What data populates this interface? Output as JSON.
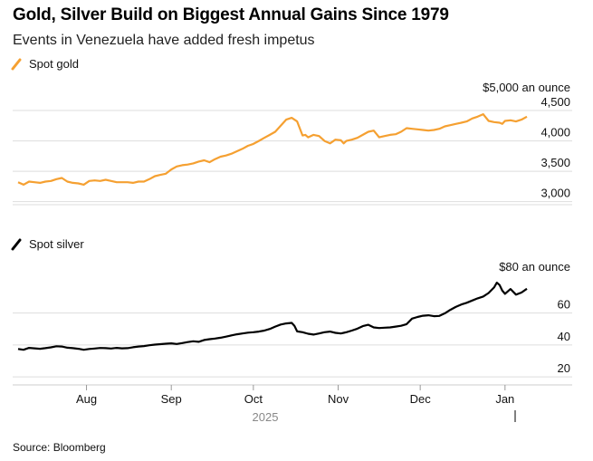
{
  "title": "Gold, Silver Build on Biggest Annual Gains Since 1979",
  "subtitle": "Events in Venezuela have added fresh impetus",
  "source": "Source: Bloomberg",
  "colors": {
    "gold": "#f5a031",
    "silver": "#000000",
    "grid": "#dddddd",
    "axis": "#cccccc"
  },
  "x_axis": {
    "labels": [
      "Aug",
      "Sep",
      "Oct",
      "Nov",
      "Dec",
      "Jan"
    ],
    "year_label": "2025"
  },
  "chart_data": [
    {
      "type": "line",
      "title": "Spot gold",
      "legend": "Spot gold",
      "unit_label": "$5,000 an ounce",
      "ylim": [
        2950,
        4650
      ],
      "yticks": [
        3000,
        3500,
        4000,
        4500
      ],
      "ytick_labels": [
        "3,000",
        "3,500",
        "4,000",
        "4,500"
      ],
      "x_range": [
        0,
        186
      ],
      "x_ticks": {
        "Aug": 25,
        "Sep": 56,
        "Oct": 86,
        "Nov": 117,
        "Dec": 147,
        "Jan": 178
      },
      "x": [
        0,
        2,
        4,
        6,
        8,
        10,
        12,
        14,
        16,
        18,
        20,
        22,
        24,
        26,
        28,
        30,
        32,
        34,
        36,
        38,
        40,
        42,
        44,
        46,
        48,
        50,
        52,
        54,
        56,
        58,
        60,
        62,
        64,
        66,
        68,
        70,
        72,
        74,
        76,
        78,
        80,
        82,
        84,
        86,
        88,
        90,
        92,
        94,
        96,
        98,
        100,
        102,
        104,
        105,
        106,
        108,
        110,
        112,
        114,
        116,
        118,
        119,
        120,
        122,
        124,
        126,
        128,
        130,
        132,
        134,
        136,
        138,
        140,
        142,
        144,
        146,
        148,
        150,
        152,
        154,
        156,
        158,
        160,
        162,
        164,
        166,
        168,
        170,
        172,
        174,
        176,
        177,
        178,
        180,
        182,
        184,
        186
      ],
      "values": [
        3320,
        3280,
        3330,
        3320,
        3310,
        3330,
        3340,
        3370,
        3390,
        3330,
        3310,
        3300,
        3280,
        3340,
        3350,
        3340,
        3360,
        3340,
        3320,
        3320,
        3320,
        3310,
        3330,
        3330,
        3370,
        3420,
        3440,
        3460,
        3530,
        3580,
        3600,
        3610,
        3630,
        3660,
        3680,
        3650,
        3700,
        3740,
        3760,
        3790,
        3830,
        3870,
        3920,
        3950,
        4000,
        4050,
        4100,
        4150,
        4250,
        4350,
        4380,
        4320,
        4090,
        4100,
        4060,
        4100,
        4080,
        4000,
        3960,
        4020,
        4010,
        3960,
        4000,
        4020,
        4050,
        4100,
        4150,
        4170,
        4060,
        4080,
        4100,
        4110,
        4150,
        4210,
        4200,
        4190,
        4180,
        4170,
        4180,
        4200,
        4240,
        4260,
        4280,
        4300,
        4320,
        4370,
        4400,
        4440,
        4330,
        4310,
        4300,
        4280,
        4330,
        4340,
        4320,
        4350,
        4400
      ]
    },
    {
      "type": "line",
      "title": "Spot silver",
      "legend": "Spot silver",
      "unit_label": "$80 an ounce",
      "ylim": [
        15,
        83
      ],
      "yticks": [
        20,
        40,
        60
      ],
      "ytick_labels": [
        "20",
        "40",
        "60"
      ],
      "x_range": [
        0,
        186
      ],
      "x_ticks": {
        "Aug": 25,
        "Sep": 56,
        "Oct": 86,
        "Nov": 117,
        "Dec": 147,
        "Jan": 178
      },
      "x": [
        0,
        2,
        4,
        6,
        8,
        10,
        12,
        14,
        16,
        18,
        20,
        22,
        24,
        26,
        28,
        30,
        32,
        34,
        36,
        38,
        40,
        42,
        44,
        46,
        48,
        50,
        52,
        54,
        56,
        58,
        60,
        62,
        64,
        66,
        68,
        70,
        72,
        74,
        76,
        78,
        80,
        82,
        84,
        86,
        88,
        90,
        92,
        94,
        96,
        98,
        100,
        101,
        102,
        104,
        106,
        108,
        110,
        112,
        114,
        116,
        118,
        120,
        122,
        124,
        126,
        128,
        130,
        132,
        134,
        136,
        138,
        140,
        142,
        144,
        146,
        148,
        150,
        152,
        154,
        156,
        158,
        160,
        162,
        164,
        166,
        168,
        170,
        172,
        174,
        175,
        176,
        177,
        178,
        180,
        182,
        184,
        186
      ],
      "values": [
        37.5,
        37.0,
        38.2,
        37.9,
        37.6,
        38.0,
        38.5,
        39.2,
        39.0,
        38.3,
        38.0,
        37.6,
        37.0,
        37.5,
        37.8,
        38.1,
        38.0,
        37.8,
        38.2,
        37.9,
        38.0,
        38.6,
        39.0,
        39.3,
        39.8,
        40.2,
        40.5,
        40.8,
        41.0,
        40.6,
        41.2,
        41.8,
        42.3,
        42.0,
        43.1,
        43.6,
        44.0,
        44.5,
        45.2,
        46.0,
        46.7,
        47.2,
        47.7,
        48.0,
        48.4,
        49.0,
        50.0,
        51.5,
        52.8,
        53.5,
        53.8,
        52.0,
        48.5,
        48.0,
        47.0,
        46.5,
        47.2,
        48.0,
        48.4,
        47.6,
        47.2,
        48.0,
        49.0,
        50.2,
        51.8,
        52.6,
        51.0,
        50.6,
        50.8,
        51.0,
        51.5,
        52.0,
        53.0,
        56.5,
        57.5,
        58.3,
        58.6,
        58.0,
        58.2,
        59.8,
        62.0,
        63.8,
        65.3,
        66.4,
        67.8,
        69.2,
        70.3,
        72.5,
        76.0,
        79.0,
        77.5,
        74.0,
        72.0,
        75.0,
        71.5,
        72.8,
        75.2
      ]
    }
  ]
}
